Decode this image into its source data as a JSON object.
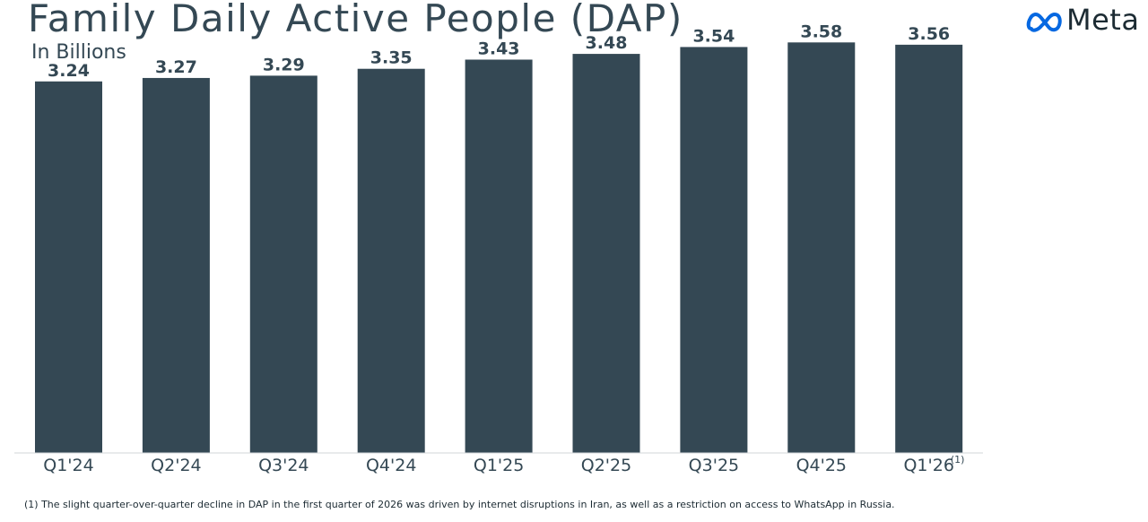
{
  "header": {
    "title": "Family Daily Active People (DAP)",
    "subtitle": "In Billions"
  },
  "brand": {
    "name": "Meta",
    "color": "#0668E1"
  },
  "chart_data": {
    "type": "bar",
    "title": "Family Daily Active People (DAP)",
    "subtitle": "In Billions",
    "categories": [
      "Q1'24",
      "Q2'24",
      "Q3'24",
      "Q4'24",
      "Q1'25",
      "Q2'25",
      "Q3'25",
      "Q4'25",
      "Q1'26"
    ],
    "values": [
      3.24,
      3.27,
      3.29,
      3.35,
      3.43,
      3.48,
      3.54,
      3.58,
      3.56
    ],
    "data_labels": [
      "3.24",
      "3.27",
      "3.29",
      "3.35",
      "3.43",
      "3.48",
      "3.54",
      "3.58",
      "3.56"
    ],
    "superscripts": [
      "",
      "",
      "",
      "",
      "",
      "",
      "",
      "",
      "(1)"
    ],
    "xlabel": "",
    "ylabel": "",
    "ylim": [
      0,
      3.95
    ],
    "grid": false,
    "legend": "none",
    "bar_color": "#344854"
  },
  "footnote": {
    "text": "(1) The slight quarter-over-quarter decline in DAP in the first quarter of 2026 was driven by internet disruptions in Iran, as well as a restriction on access to WhatsApp in Russia."
  }
}
